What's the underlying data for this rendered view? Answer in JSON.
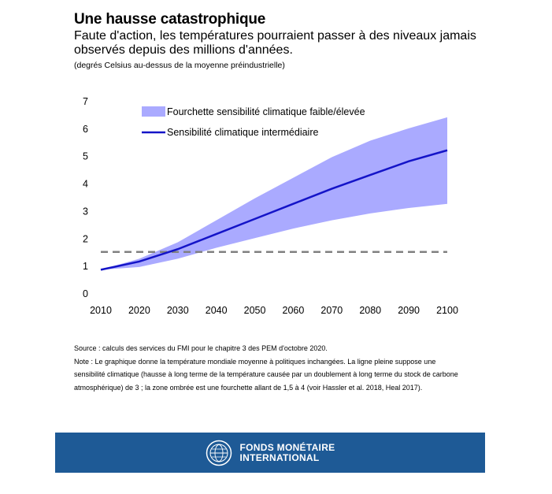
{
  "header": {
    "title": "Une hausse catastrophique",
    "subtitle": "Faute d'action, les températures pourraient passer à des niveaux jamais observés depuis des millions d'années.",
    "unit": "(degrés Celsius au-dessus de la moyenne préindustrielle)"
  },
  "chart_data": {
    "type": "line",
    "x": [
      2010,
      2020,
      2030,
      2040,
      2050,
      2060,
      2070,
      2080,
      2090,
      2100
    ],
    "xlim": [
      2010,
      2100
    ],
    "ylim": [
      0,
      7
    ],
    "x_ticks": [
      "2010",
      "2020",
      "2030",
      "2040",
      "2050",
      "2060",
      "2070",
      "2080",
      "2090",
      "2100"
    ],
    "y_ticks": [
      "0",
      "1",
      "2",
      "3",
      "4",
      "5",
      "6",
      "7"
    ],
    "grid": false,
    "legend_position": "top-left",
    "series": [
      {
        "name": "Sensibilité climatique intermédiaire",
        "kind": "line",
        "color": "#1414c8",
        "values": [
          0.85,
          1.15,
          1.6,
          2.15,
          2.7,
          3.25,
          3.8,
          4.3,
          4.8,
          5.2
        ]
      },
      {
        "name": "Fourchette sensibilité climatique faible/élevée",
        "kind": "band",
        "color": "#aaaaff",
        "lower": [
          0.85,
          0.95,
          1.25,
          1.65,
          2.0,
          2.35,
          2.65,
          2.9,
          3.1,
          3.25
        ],
        "upper": [
          0.85,
          1.25,
          1.85,
          2.65,
          3.45,
          4.2,
          4.95,
          5.55,
          6.0,
          6.4
        ]
      }
    ],
    "reference_line": {
      "y": 1.5,
      "style": "dashed",
      "color": "#808080"
    }
  },
  "notes": {
    "source": "Source : calculs des services du FMI pour le chapitre 3 des PEM d'octobre 2020.",
    "note": "Note : Le graphique donne la température mondiale moyenne à politiques inchangées. La ligne pleine suppose une sensibilité climatique (hausse à long terme de la température causée par un doublement à long terme du stock de carbone atmosphérique) de 3 ; la zone ombrée est une fourchette allant de 1,5 à 4 (voir Hassler et al. 2018, Heal 2017)."
  },
  "footer": {
    "line1": "FONDS MONÉTAIRE",
    "line2": "INTERNATIONAL",
    "bg_color": "#1e5a96",
    "logo_icon": "imf-seal-icon"
  }
}
